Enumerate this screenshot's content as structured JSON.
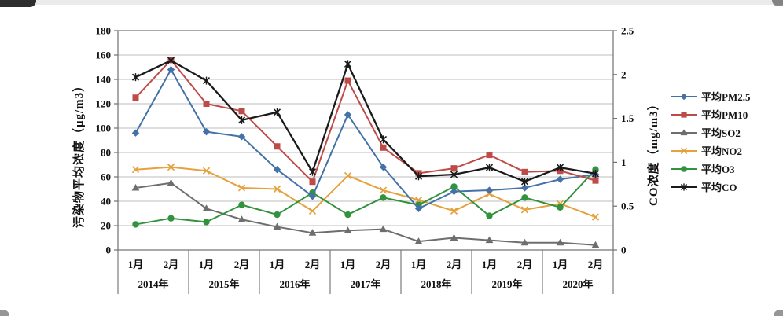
{
  "chart_data": {
    "type": "line",
    "title": "",
    "years": [
      "2014年",
      "2015年",
      "2016年",
      "2017年",
      "2018年",
      "2019年",
      "2020年"
    ],
    "months_per_year": [
      "1月",
      "2月"
    ],
    "left_axis": {
      "label": "污染物平均浓度（μg/m3）",
      "min": 0,
      "max": 180,
      "step": 20,
      "ticks": [
        "0",
        "20",
        "40",
        "60",
        "80",
        "100",
        "120",
        "140",
        "160",
        "180"
      ]
    },
    "right_axis": {
      "label": "CO浓度（mg/m3）",
      "min": 0,
      "max": 2.5,
      "step": 0.5,
      "ticks": [
        "0",
        "0.5",
        "1",
        "1.5",
        "2",
        "2.5"
      ]
    },
    "grid": true,
    "legend_position": "right",
    "series": [
      {
        "name": "平均PM2.5",
        "color": "#4472A8",
        "marker": "diamond",
        "axis": "left",
        "values": [
          96,
          148,
          97,
          93,
          66,
          44,
          111,
          68,
          34,
          48,
          49,
          51,
          58,
          62
        ]
      },
      {
        "name": "平均PM10",
        "color": "#BE4B48",
        "marker": "square",
        "axis": "left",
        "values": [
          125,
          156,
          120,
          114,
          85,
          56,
          139,
          84,
          63,
          67,
          78,
          64,
          65,
          57
        ]
      },
      {
        "name": "平均SO2",
        "color": "#6E6E6E",
        "marker": "triangle",
        "axis": "left",
        "values": [
          51,
          55,
          34,
          25,
          19,
          14,
          16,
          17,
          7,
          10,
          8,
          6,
          6,
          4
        ]
      },
      {
        "name": "平均NO2",
        "color": "#E5A13D",
        "marker": "x",
        "axis": "left",
        "values": [
          66,
          68,
          65,
          51,
          50,
          32,
          61,
          49,
          41,
          32,
          46,
          33,
          38,
          27
        ]
      },
      {
        "name": "平均O3",
        "color": "#33923D",
        "marker": "circle",
        "axis": "left",
        "values": [
          21,
          26,
          23,
          37,
          29,
          47,
          29,
          43,
          37,
          52,
          28,
          43,
          35,
          66
        ]
      },
      {
        "name": "平均CO",
        "color": "#1A1A1A",
        "marker": "asterisk",
        "axis": "right",
        "values": [
          1.97,
          2.16,
          1.93,
          1.48,
          1.57,
          0.89,
          2.12,
          1.26,
          0.84,
          0.86,
          0.94,
          0.78,
          0.94,
          0.87
        ]
      }
    ]
  }
}
